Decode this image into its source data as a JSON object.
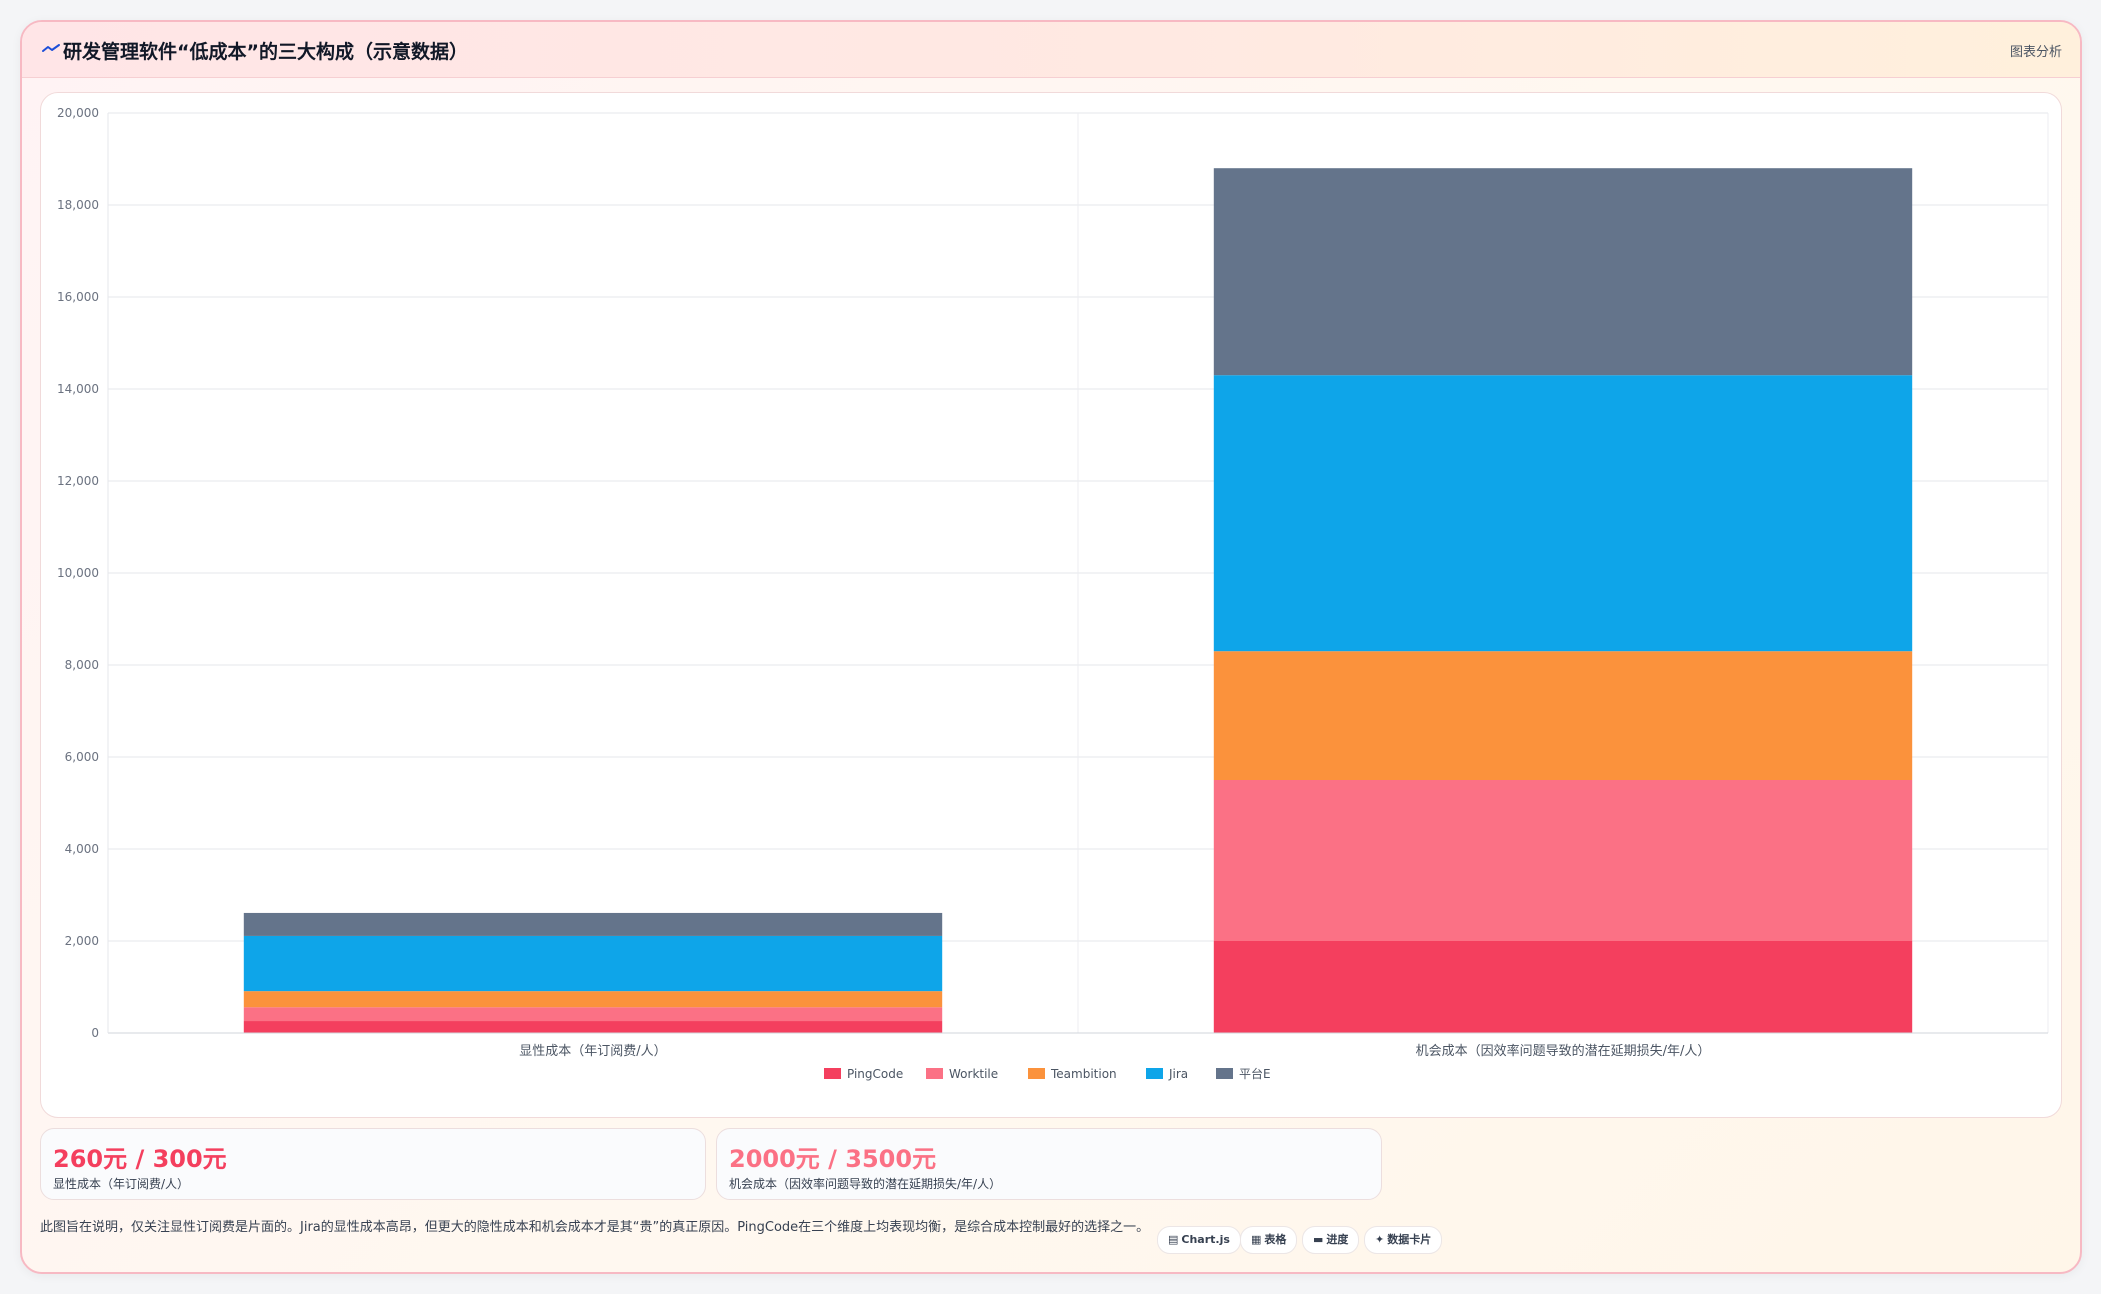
{
  "header": {
    "title": "研发管理软件“低成本”的三大构成（示意数据）",
    "tag": "图表分析",
    "icon": "trend-line-icon"
  },
  "chart_data": {
    "type": "bar",
    "stacked": true,
    "title": "",
    "xlabel": "",
    "ylabel": "",
    "categories": [
      "显性成本（年订阅费/人）",
      "机会成本（因效率问题导致的潜在延期损失/年/人）"
    ],
    "series": [
      {
        "name": "PingCode",
        "color": "#f43f5e",
        "values": [
          260,
          2000
        ]
      },
      {
        "name": "Worktile",
        "color": "#fb7185",
        "values": [
          300,
          3500
        ]
      },
      {
        "name": "Teambition",
        "color": "#fb923c",
        "values": [
          350,
          2800
        ]
      },
      {
        "name": "Jira",
        "color": "#0ea5e9",
        "values": [
          1200,
          6000
        ]
      },
      {
        "name": "平台E",
        "color": "#64748b",
        "values": [
          500,
          4500
        ]
      }
    ],
    "ylim": [
      0,
      20000
    ],
    "yticks": [
      0,
      2000,
      4000,
      6000,
      8000,
      10000,
      12000,
      14000,
      16000,
      18000,
      20000
    ],
    "grid": true,
    "legend_position": "bottom"
  },
  "kpis": [
    {
      "value": "260元 / 300元",
      "label": "显性成本（年订阅费/人）",
      "color": "#f43f5e"
    },
    {
      "value": "2000元 / 3500元",
      "label": "机会成本（因效率问题导致的潜在延期损失/年/人）",
      "color": "#fb7185"
    }
  ],
  "note": "此图旨在说明，仅关注显性订阅费是片面的。Jira的显性成本高昂，但更大的隐性成本和机会成本才是其“贵”的真正原因。PingCode在三个维度上均表现均衡，是综合成本控制最好的选择之一。",
  "chips": [
    {
      "glyph": "▤",
      "icon": "chart-icon",
      "label": "Chart.js"
    },
    {
      "glyph": "▦",
      "icon": "table-icon",
      "label": "表格"
    },
    {
      "glyph": "▬",
      "icon": "progress-icon",
      "label": "进度"
    },
    {
      "glyph": "✦",
      "icon": "sparkle-icon",
      "label": "数据卡片"
    }
  ]
}
